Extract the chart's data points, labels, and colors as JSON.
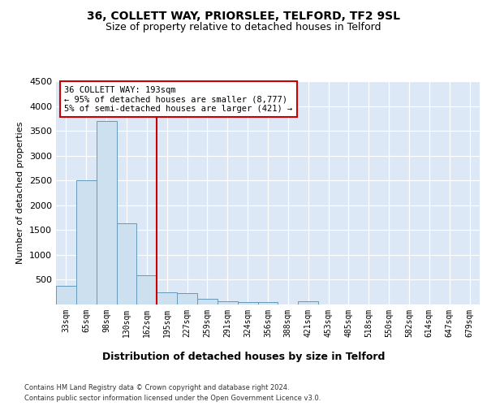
{
  "title1": "36, COLLETT WAY, PRIORSLEE, TELFORD, TF2 9SL",
  "title2": "Size of property relative to detached houses in Telford",
  "xlabel": "Distribution of detached houses by size in Telford",
  "ylabel": "Number of detached properties",
  "categories": [
    "33sqm",
    "65sqm",
    "98sqm",
    "130sqm",
    "162sqm",
    "195sqm",
    "227sqm",
    "259sqm",
    "291sqm",
    "324sqm",
    "356sqm",
    "388sqm",
    "421sqm",
    "453sqm",
    "485sqm",
    "518sqm",
    "550sqm",
    "582sqm",
    "614sqm",
    "647sqm",
    "679sqm"
  ],
  "values": [
    370,
    2500,
    3700,
    1630,
    590,
    240,
    230,
    110,
    70,
    50,
    50,
    0,
    60,
    0,
    0,
    0,
    0,
    0,
    0,
    0,
    0
  ],
  "bar_color": "#cce0f0",
  "bar_edge_color": "#6699bb",
  "red_line_color": "#cc0000",
  "annotation_text1": "36 COLLETT WAY: 193sqm",
  "annotation_text2": "← 95% of detached houses are smaller (8,777)",
  "annotation_text3": "5% of semi-detached houses are larger (421) →",
  "annotation_box_color": "white",
  "annotation_border_color": "#cc0000",
  "footer1": "Contains HM Land Registry data © Crown copyright and database right 2024.",
  "footer2": "Contains public sector information licensed under the Open Government Licence v3.0.",
  "ylim": [
    0,
    4500
  ],
  "yticks": [
    0,
    500,
    1000,
    1500,
    2000,
    2500,
    3000,
    3500,
    4000,
    4500
  ],
  "bg_color": "#dce8f5",
  "fig_bg_color": "#ffffff",
  "title1_fontsize": 10,
  "title2_fontsize": 9,
  "red_line_x": 4.5
}
